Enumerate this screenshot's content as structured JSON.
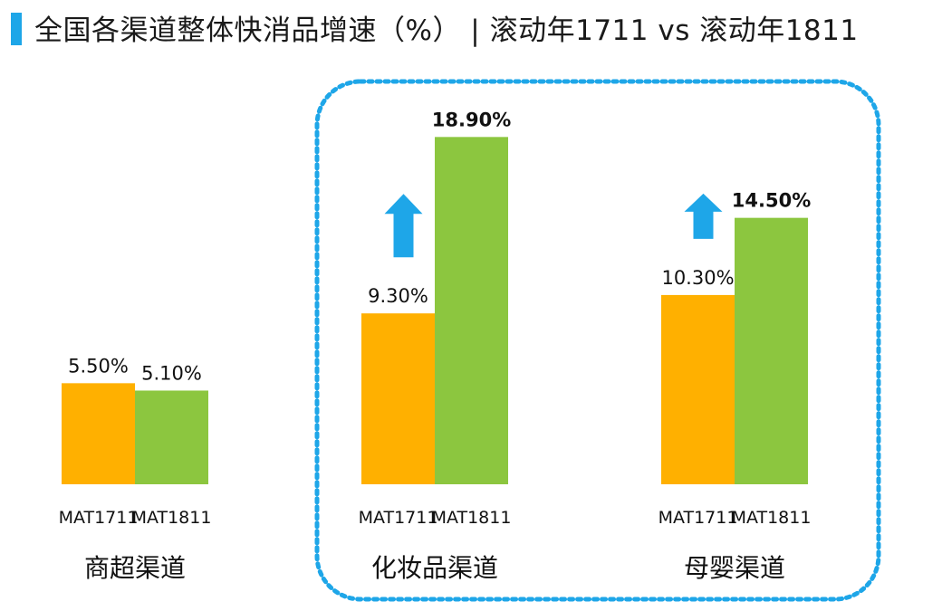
{
  "title": "全国各渠道整体快消品增速（%） | 滚动年1711 vs 滚动年1811",
  "colors": {
    "accent": "#1ea6e8",
    "mat1711": "#FFB000",
    "mat1811": "#8CC63F",
    "arrow": "#1ea6e8",
    "highlight_border": "#1ea6e8"
  },
  "chart_data": {
    "type": "bar",
    "title": "全国各渠道整体快消品增速（%） | 滚动年1711 vs 滚动年1811",
    "ylabel": "",
    "xlabel": "",
    "unit": "%",
    "ylim": [
      0,
      20
    ],
    "grid": false,
    "series_names": [
      "MAT1711",
      "MAT1811"
    ],
    "groups": [
      {
        "name": "商超渠道",
        "ticks": [
          "MAT1711",
          "MAT1811"
        ],
        "values": [
          5.5,
          5.1
        ],
        "labels": [
          "5.50%",
          "5.10%"
        ],
        "bold": [
          false,
          false
        ],
        "growth_arrow": false
      },
      {
        "name": "化妆品渠道",
        "ticks": [
          "MAT1711",
          "MAT1811"
        ],
        "values": [
          9.3,
          18.9
        ],
        "labels": [
          "9.30%",
          "18.90%"
        ],
        "bold": [
          false,
          true
        ],
        "growth_arrow": true
      },
      {
        "name": "母婴渠道",
        "ticks": [
          "MAT1711",
          "MAT1811"
        ],
        "values": [
          10.3,
          14.5
        ],
        "labels": [
          "10.30%",
          "14.50%"
        ],
        "bold": [
          false,
          true
        ],
        "growth_arrow": true
      }
    ],
    "highlighted_groups": [
      "化妆品渠道",
      "母婴渠道"
    ]
  }
}
